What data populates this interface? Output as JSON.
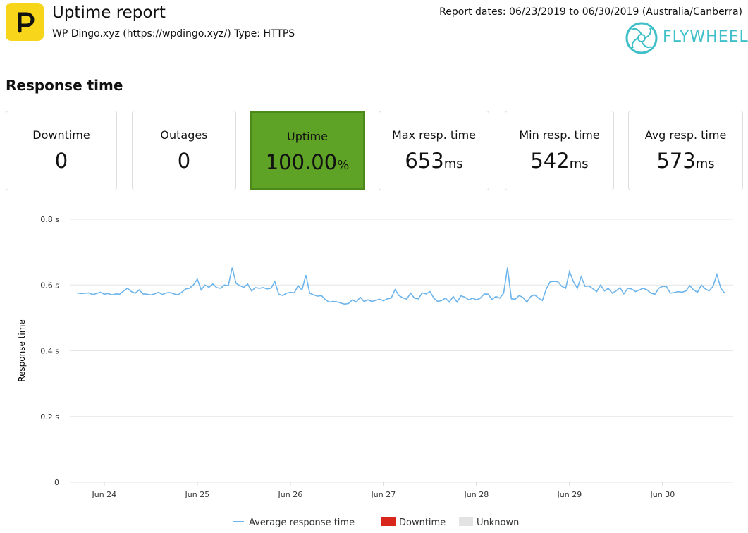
{
  "header": {
    "title": "Uptime report",
    "subtitle": "WP Dingo.xyz (https://wpdingo.xyz/) Type: HTTPS",
    "report_dates": "Report dates: 06/23/2019 to 06/30/2019 (Australia/Canberra)",
    "brand": "FLYWHEEL"
  },
  "section_title": "Response time",
  "cards": [
    {
      "label": "Downtime",
      "value": "0"
    },
    {
      "label": "Outages",
      "value": "0"
    },
    {
      "label": "Uptime",
      "value": "100.00",
      "unit": "%"
    },
    {
      "label": "Max resp. time",
      "value": "653",
      "unit": "ms"
    },
    {
      "label": "Min resp. time",
      "value": "542",
      "unit": "ms"
    },
    {
      "label": "Avg resp. time",
      "value": "573",
      "unit": "ms"
    }
  ],
  "chart_data": {
    "type": "line",
    "ylabel": "Response time",
    "ylim": [
      0,
      0.8
    ],
    "yticks": [
      0,
      {
        "value": 0.2,
        "label": "0.2 s"
      },
      {
        "value": 0.4,
        "label": "0.4 s"
      },
      {
        "value": 0.6,
        "label": "0.6 s"
      },
      {
        "value": 0.8,
        "label": "0.8 s"
      }
    ],
    "xlim": [
      -1.7,
      169.2
    ],
    "xticks": [
      {
        "value": 7,
        "label": "Jun 24"
      },
      {
        "value": 31,
        "label": "Jun 25"
      },
      {
        "value": 55,
        "label": "Jun 26"
      },
      {
        "value": 79,
        "label": "Jun 27"
      },
      {
        "value": 103,
        "label": "Jun 28"
      },
      {
        "value": 127,
        "label": "Jun 29"
      },
      {
        "value": 151,
        "label": "Jun 30"
      }
    ],
    "grid": true,
    "series": [
      {
        "name": "Average response time",
        "color": "#6cb4ec",
        "values": [
          0.576,
          0.574,
          0.575,
          0.576,
          0.571,
          0.574,
          0.578,
          0.572,
          0.574,
          0.57,
          0.573,
          0.572,
          0.582,
          0.59,
          0.58,
          0.575,
          0.585,
          0.573,
          0.572,
          0.57,
          0.573,
          0.578,
          0.571,
          0.576,
          0.577,
          0.573,
          0.57,
          0.578,
          0.588,
          0.59,
          0.6,
          0.618,
          0.585,
          0.6,
          0.593,
          0.603,
          0.592,
          0.59,
          0.6,
          0.598,
          0.653,
          0.605,
          0.598,
          0.593,
          0.603,
          0.582,
          0.592,
          0.59,
          0.592,
          0.588,
          0.59,
          0.61,
          0.572,
          0.568,
          0.575,
          0.578,
          0.576,
          0.598,
          0.585,
          0.63,
          0.575,
          0.57,
          0.566,
          0.568,
          0.556,
          0.548,
          0.55,
          0.549,
          0.545,
          0.542,
          0.544,
          0.555,
          0.548,
          0.563,
          0.55,
          0.555,
          0.55,
          0.553,
          0.557,
          0.552,
          0.558,
          0.56,
          0.586,
          0.568,
          0.561,
          0.557,
          0.575,
          0.56,
          0.558,
          0.576,
          0.573,
          0.58,
          0.56,
          0.55,
          0.553,
          0.56,
          0.548,
          0.565,
          0.548,
          0.567,
          0.563,
          0.555,
          0.56,
          0.555,
          0.56,
          0.573,
          0.572,
          0.556,
          0.565,
          0.56,
          0.575,
          0.653,
          0.558,
          0.557,
          0.568,
          0.562,
          0.548,
          0.565,
          0.57,
          0.56,
          0.553,
          0.588,
          0.61,
          0.611,
          0.61,
          0.596,
          0.59,
          0.641,
          0.61,
          0.59,
          0.625,
          0.596,
          0.597,
          0.589,
          0.58,
          0.6,
          0.582,
          0.59,
          0.575,
          0.582,
          0.592,
          0.573,
          0.59,
          0.588,
          0.58,
          0.585,
          0.59,
          0.585,
          0.575,
          0.572,
          0.59,
          0.596,
          0.595,
          0.575,
          0.577,
          0.58,
          0.578,
          0.582,
          0.598,
          0.585,
          0.578,
          0.6,
          0.588,
          0.582,
          0.596,
          0.632,
          0.59,
          0.575
        ]
      }
    ],
    "legend_extra": [
      {
        "name": "Downtime",
        "color": "#d9261c"
      },
      {
        "name": "Unknown",
        "color": "#e3e3e3"
      }
    ]
  }
}
